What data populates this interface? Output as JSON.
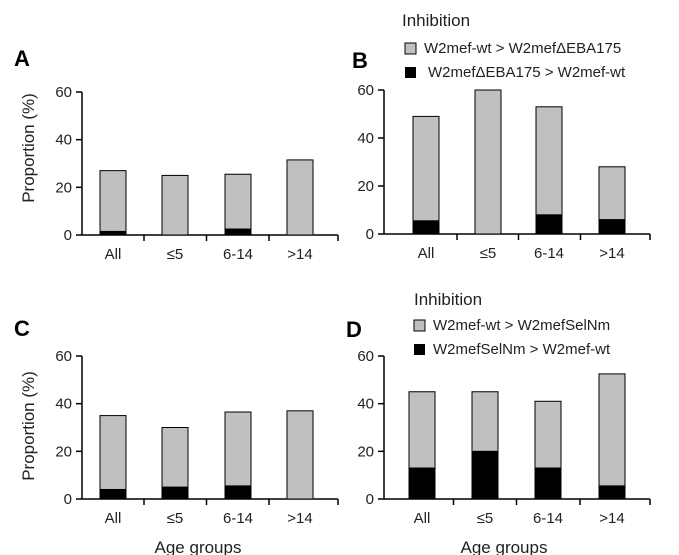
{
  "colors": {
    "gray_series": "#c0c0c0",
    "black_series": "#000000",
    "axis": "#000000"
  },
  "legend_top": {
    "title": "Inhibition",
    "items": [
      {
        "label": "W2mef-wt > W2mefΔEBA175",
        "color": "#c0c0c0"
      },
      {
        "label": "W2mefΔEBA175 > W2mef-wt",
        "color": "#000000"
      }
    ]
  },
  "legend_bottom": {
    "title": "Inhibition",
    "items": [
      {
        "label": "W2mef-wt > W2mefSelNm",
        "color": "#c0c0c0"
      },
      {
        "label": "W2mefSelNm > W2mef-wt",
        "color": "#000000"
      }
    ]
  },
  "chart_data": [
    {
      "panel": "A",
      "type": "bar",
      "stacked": true,
      "categories": [
        "All",
        "≤5",
        "6-14",
        ">14"
      ],
      "series": [
        {
          "name": "W2mefΔEBA175 > W2mef-wt",
          "color": "#000000",
          "values": [
            1.5,
            0,
            2.5,
            0
          ]
        },
        {
          "name": "W2mef-wt > W2mefΔEBA175",
          "color": "#c0c0c0",
          "values": [
            25.5,
            25,
            23,
            31.5
          ]
        }
      ],
      "ylabel": "Proportion (%)",
      "xlabel": "",
      "ylim": [
        0,
        60
      ],
      "yticks": [
        "0",
        "20",
        "40",
        "60"
      ]
    },
    {
      "panel": "B",
      "type": "bar",
      "stacked": true,
      "categories": [
        "All",
        "≤5",
        "6-14",
        ">14"
      ],
      "series": [
        {
          "name": "W2mefΔEBA175 > W2mef-wt",
          "color": "#000000",
          "values": [
            5.5,
            0,
            8,
            6
          ]
        },
        {
          "name": "W2mef-wt > W2mefΔEBA175",
          "color": "#c0c0c0",
          "values": [
            43.5,
            60,
            45,
            22
          ]
        }
      ],
      "ylabel": "",
      "xlabel": "",
      "ylim": [
        0,
        60
      ],
      "yticks": [
        "0",
        "20",
        "40",
        "60"
      ]
    },
    {
      "panel": "C",
      "type": "bar",
      "stacked": true,
      "categories": [
        "All",
        "≤5",
        "6-14",
        ">14"
      ],
      "series": [
        {
          "name": "W2mefSelNm > W2mef-wt",
          "color": "#000000",
          "values": [
            4,
            5,
            5.5,
            0
          ]
        },
        {
          "name": "W2mef-wt > W2mefSelNm",
          "color": "#c0c0c0",
          "values": [
            31,
            25,
            31,
            37
          ]
        }
      ],
      "ylabel": "Proportion (%)",
      "xlabel": "Age groups",
      "ylim": [
        0,
        60
      ],
      "yticks": [
        "0",
        "20",
        "40",
        "60"
      ]
    },
    {
      "panel": "D",
      "type": "bar",
      "stacked": true,
      "categories": [
        "All",
        "≤5",
        "6-14",
        ">14"
      ],
      "series": [
        {
          "name": "W2mefSelNm > W2mef-wt",
          "color": "#000000",
          "values": [
            13,
            20,
            13,
            5.5
          ]
        },
        {
          "name": "W2mef-wt > W2mefSelNm",
          "color": "#c0c0c0",
          "values": [
            32,
            25,
            28,
            47
          ]
        }
      ],
      "ylabel": "",
      "xlabel": "Age groups",
      "ylim": [
        0,
        60
      ],
      "yticks": [
        "0",
        "20",
        "40",
        "60"
      ]
    }
  ]
}
